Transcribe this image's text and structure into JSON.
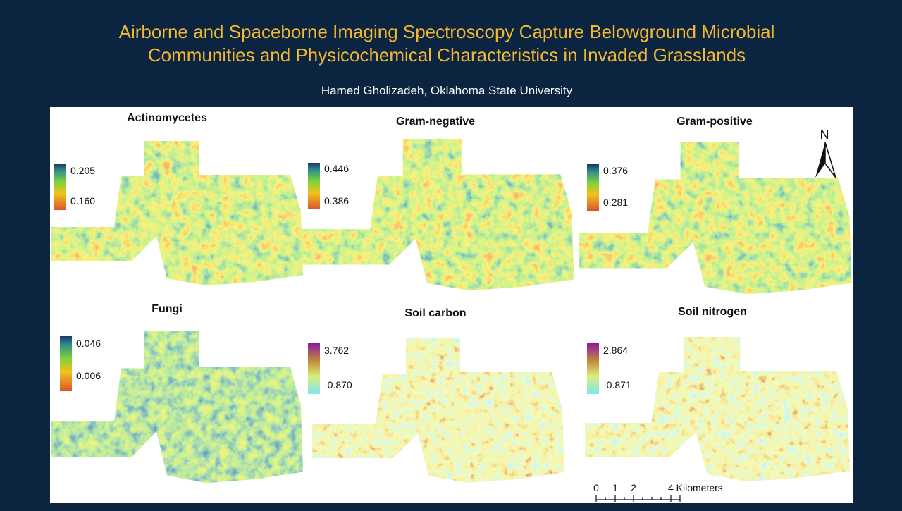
{
  "header": {
    "title_lines": [
      "Airborne and Spaceborne Imaging Spectroscopy Capture Belowground Microbial",
      "Communities and Physicochemical Characteristics in Invaded Grasslands"
    ],
    "author": "Hamed Gholizadeh, Oklahoma State University"
  },
  "panels": [
    {
      "name": "Actinomycetes",
      "legend_max": "0.205",
      "legend_min": "0.160"
    },
    {
      "name": "Gram-negative",
      "legend_max": "0.446",
      "legend_min": "0.386"
    },
    {
      "name": "Gram-positive",
      "legend_max": "0.376",
      "legend_min": "0.281"
    },
    {
      "name": "Fungi",
      "legend_max": "0.046",
      "legend_min": "0.006"
    },
    {
      "name": "Soil carbon",
      "legend_max": "3.762",
      "legend_min": "-0.870"
    },
    {
      "name": "Soil nitrogen",
      "legend_max": "2.864",
      "legend_min": "-0.871"
    }
  ],
  "north_label": "N",
  "scale_bar": {
    "labels": [
      "0",
      "1",
      "2",
      "4 Kilometers"
    ]
  }
}
